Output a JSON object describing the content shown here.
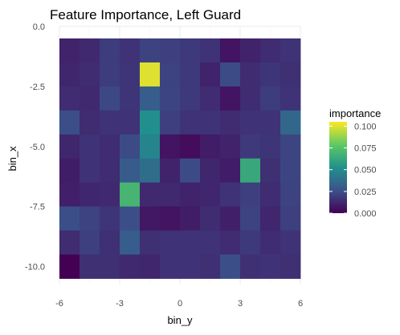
{
  "chart_data": {
    "type": "heatmap",
    "title": "Feature Importance, Left Guard",
    "xlabel": "bin_y",
    "ylabel": "bin_x",
    "xlim": [
      -6,
      6
    ],
    "ylim": [
      -10.75,
      0
    ],
    "x_ticks": [
      -6,
      -3,
      0,
      3,
      6
    ],
    "x_tick_labels": [
      "-6",
      "-3",
      "0",
      "3",
      "6"
    ],
    "y_ticks": [
      0,
      -2.5,
      -5,
      -7.5,
      -10
    ],
    "y_tick_labels": [
      "0.0",
      "-2.5",
      "-5.0",
      "-7.5",
      "-10.0"
    ],
    "grid": true,
    "x_centers": [
      -5.5,
      -4.5,
      -3.5,
      -2.5,
      -1.5,
      -0.5,
      0.5,
      1.5,
      2.5,
      3.5,
      4.5,
      5.5
    ],
    "y_centers": [
      -1,
      -2,
      -3,
      -4,
      -5,
      -6,
      -7,
      -8,
      -9,
      -10
    ],
    "cell_width": 1,
    "cell_height": 1,
    "values": [
      [
        0.011,
        0.013,
        0.019,
        0.016,
        0.021,
        0.02,
        0.018,
        0.016,
        0.006,
        0.011,
        0.014,
        0.016
      ],
      [
        0.012,
        0.014,
        0.019,
        0.017,
        0.1,
        0.021,
        0.018,
        0.011,
        0.024,
        0.014,
        0.017,
        0.015
      ],
      [
        0.014,
        0.013,
        0.023,
        0.017,
        0.031,
        0.022,
        0.018,
        0.014,
        0.006,
        0.014,
        0.019,
        0.016
      ],
      [
        0.025,
        0.014,
        0.016,
        0.016,
        0.052,
        0.02,
        0.016,
        0.016,
        0.014,
        0.016,
        0.016,
        0.035
      ],
      [
        0.012,
        0.016,
        0.014,
        0.024,
        0.047,
        0.006,
        0.004,
        0.009,
        0.011,
        0.018,
        0.017,
        0.022
      ],
      [
        0.009,
        0.016,
        0.014,
        0.03,
        0.038,
        0.011,
        0.024,
        0.012,
        0.009,
        0.063,
        0.015,
        0.022
      ],
      [
        0.01,
        0.012,
        0.013,
        0.069,
        0.013,
        0.013,
        0.011,
        0.012,
        0.016,
        0.02,
        0.014,
        0.021
      ],
      [
        0.025,
        0.021,
        0.017,
        0.025,
        0.007,
        0.006,
        0.009,
        0.014,
        0.01,
        0.021,
        0.012,
        0.02
      ],
      [
        0.014,
        0.02,
        0.015,
        0.031,
        0.015,
        0.016,
        0.016,
        0.016,
        0.014,
        0.018,
        0.014,
        0.016
      ],
      [
        0.0,
        0.015,
        0.015,
        0.013,
        0.012,
        0.016,
        0.016,
        0.015,
        0.025,
        0.015,
        0.016,
        0.015
      ]
    ],
    "legend": {
      "title": "importance",
      "placement": "right",
      "min": 0,
      "max": 0.105,
      "ticks": [
        0.1,
        0.075,
        0.05,
        0.025,
        0
      ],
      "tick_labels": [
        "0.100",
        "0.075",
        "0.050",
        "0.025",
        "0.000"
      ]
    },
    "colorscale": [
      "#440154",
      "#3b528b",
      "#21918c",
      "#5ec962",
      "#fde725"
    ]
  }
}
